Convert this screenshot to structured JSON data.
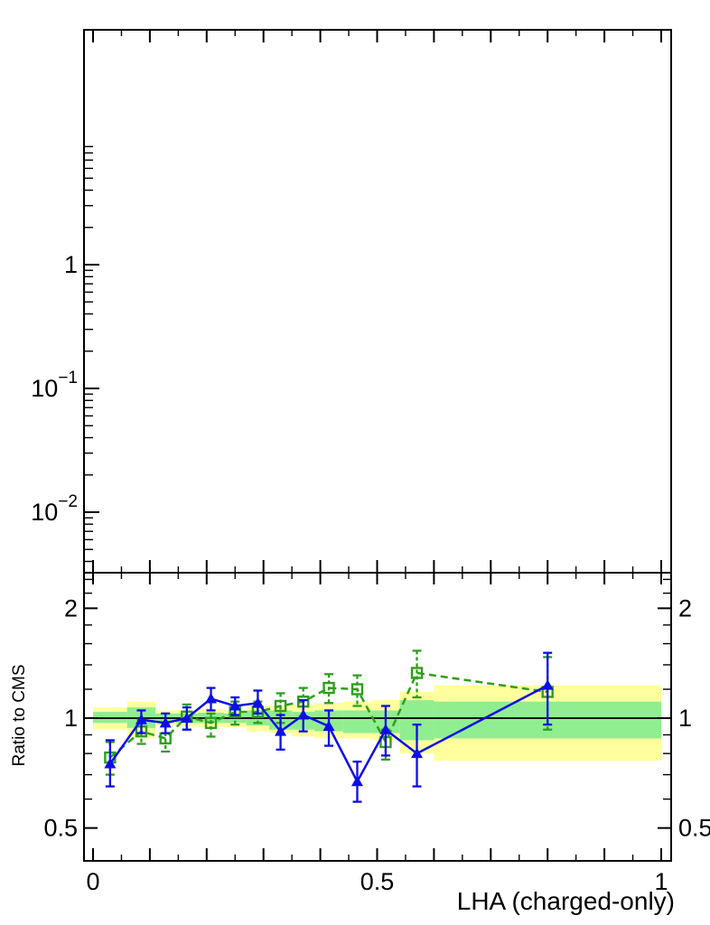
{
  "chart_data": {
    "type": "line",
    "title": "",
    "xlabel": "LHA (charged-only)",
    "colors": {
      "background": "#ffffff",
      "axis": "#000000",
      "yellow_band": "#ffff9e",
      "green_band": "#90ee90",
      "blue_series": "#0d0de8",
      "green_series": "#2f9e1d"
    },
    "x_axis": {
      "range": [
        -0.016,
        1.018
      ],
      "major_tick_step": 0.1,
      "minor_tick_step": 0.05,
      "labeled_ticks": [
        {
          "value": 0,
          "label": "0"
        },
        {
          "value": 0.5,
          "label": "0.5"
        },
        {
          "value": 1,
          "label": "1"
        }
      ]
    },
    "panels": [
      {
        "name": "main",
        "yscale": "log",
        "ylabel": "",
        "ylim": [
          0.0033,
          79
        ],
        "y_tick_range": [
          0.004,
          9.5
        ],
        "labeled_ticks": [
          {
            "value": 1,
            "base": "1",
            "exp": ""
          },
          {
            "value": 0.1,
            "base": "10",
            "exp": "−1"
          },
          {
            "value": 0.01,
            "base": "10",
            "exp": "−2"
          }
        ],
        "minor_tick_pattern": [
          2,
          3,
          4,
          5,
          6,
          7,
          8,
          9
        ],
        "decades": [
          1,
          0.1,
          0.01,
          0.001
        ],
        "series": []
      },
      {
        "name": "ratio",
        "yscale": "log",
        "ylabel": "Ratio to CMS",
        "ylim": [
          0.4,
          2.5
        ],
        "reference_line_y": 1,
        "labeled_ticks": [
          {
            "value": 2,
            "base": "2",
            "exp": ""
          },
          {
            "value": 1,
            "base": "1",
            "exp": ""
          },
          {
            "value": 0.5,
            "base": "0.5",
            "exp": ""
          }
        ],
        "minor_ticks": [
          2.4,
          2.2,
          1.8,
          1.6,
          1.4,
          1.2,
          0.9,
          0.8,
          0.7,
          0.6
        ],
        "bin_edges": [
          0,
          0.06,
          0.11,
          0.145,
          0.185,
          0.23,
          0.27,
          0.31,
          0.35,
          0.39,
          0.44,
          0.49,
          0.54,
          0.6,
          1.0
        ],
        "uncertainty_bands": {
          "bins": [
            {
              "x0": 0.0,
              "x1": 0.06,
              "yellow": [
                0.93,
                1.07
              ],
              "green": [
                0.97,
                1.04
              ]
            },
            {
              "x0": 0.06,
              "x1": 0.11,
              "yellow": [
                0.88,
                1.11
              ],
              "green": [
                0.94,
                1.07
              ]
            },
            {
              "x0": 0.11,
              "x1": 0.145,
              "yellow": [
                0.955,
                1.05
              ],
              "green": [
                0.98,
                1.03
              ]
            },
            {
              "x0": 0.145,
              "x1": 0.185,
              "yellow": [
                0.95,
                1.05
              ],
              "green": [
                0.97,
                1.03
              ]
            },
            {
              "x0": 0.185,
              "x1": 0.23,
              "yellow": [
                0.945,
                1.06
              ],
              "green": [
                0.97,
                1.035
              ]
            },
            {
              "x0": 0.23,
              "x1": 0.27,
              "yellow": [
                0.945,
                1.05
              ],
              "green": [
                0.97,
                1.03
              ]
            },
            {
              "x0": 0.27,
              "x1": 0.31,
              "yellow": [
                0.92,
                1.08
              ],
              "green": [
                0.955,
                1.05
              ]
            },
            {
              "x0": 0.31,
              "x1": 0.35,
              "yellow": [
                0.91,
                1.08
              ],
              "green": [
                0.93,
                1.05
              ]
            },
            {
              "x0": 0.35,
              "x1": 0.39,
              "yellow": [
                0.89,
                1.09
              ],
              "green": [
                0.93,
                1.04
              ]
            },
            {
              "x0": 0.39,
              "x1": 0.44,
              "yellow": [
                0.88,
                1.1
              ],
              "green": [
                0.92,
                1.05
              ]
            },
            {
              "x0": 0.44,
              "x1": 0.49,
              "yellow": [
                0.88,
                1.11
              ],
              "green": [
                0.91,
                1.05
              ]
            },
            {
              "x0": 0.49,
              "x1": 0.54,
              "yellow": [
                0.87,
                1.12
              ],
              "green": [
                0.91,
                1.05
              ]
            },
            {
              "x0": 0.54,
              "x1": 0.6,
              "yellow": [
                0.8,
                1.18
              ],
              "green": [
                0.87,
                1.12
              ]
            },
            {
              "x0": 0.6,
              "x1": 1.0,
              "yellow": [
                0.765,
                1.23
              ],
              "green": [
                0.88,
                1.11
              ]
            }
          ]
        },
        "series": [
          {
            "name": "green-squares",
            "marker": "square-open",
            "line": "dashed",
            "x": [
              0.03,
              0.085,
              0.1275,
              0.165,
              0.2075,
              0.25,
              0.29,
              0.33,
              0.37,
              0.415,
              0.465,
              0.515,
              0.57,
              0.8
            ],
            "y": [
              0.78,
              0.92,
              0.88,
              1.01,
              0.97,
              1.04,
              1.04,
              1.08,
              1.11,
              1.21,
              1.2,
              0.86,
              1.33,
              1.18
            ],
            "y_lo": [
              0.7,
              0.85,
              0.81,
              0.93,
              0.89,
              0.96,
              0.97,
              0.97,
              1.01,
              1.1,
              1.08,
              0.77,
              1.14,
              0.93
            ],
            "y_hi": [
              0.86,
              0.99,
              0.95,
              1.09,
              1.03,
              1.11,
              1.11,
              1.17,
              1.21,
              1.32,
              1.31,
              0.93,
              1.53,
              1.47
            ]
          },
          {
            "name": "blue-triangles",
            "marker": "triangle-filled",
            "line": "solid",
            "x": [
              0.03,
              0.085,
              0.1275,
              0.165,
              0.2075,
              0.25,
              0.29,
              0.33,
              0.37,
              0.415,
              0.465,
              0.515,
              0.57,
              0.8
            ],
            "y": [
              0.75,
              0.99,
              0.97,
              1.0,
              1.13,
              1.08,
              1.1,
              0.92,
              1.02,
              0.95,
              0.67,
              0.93,
              0.8,
              1.23
            ],
            "y_lo": [
              0.65,
              0.91,
              0.91,
              0.93,
              1.05,
              1.02,
              1.03,
              0.82,
              0.92,
              0.84,
              0.59,
              0.79,
              0.65,
              0.96
            ],
            "y_hi": [
              0.87,
              1.05,
              1.03,
              1.07,
              1.21,
              1.14,
              1.19,
              1.02,
              1.12,
              1.05,
              0.76,
              1.08,
              0.96,
              1.51
            ]
          }
        ]
      }
    ]
  }
}
